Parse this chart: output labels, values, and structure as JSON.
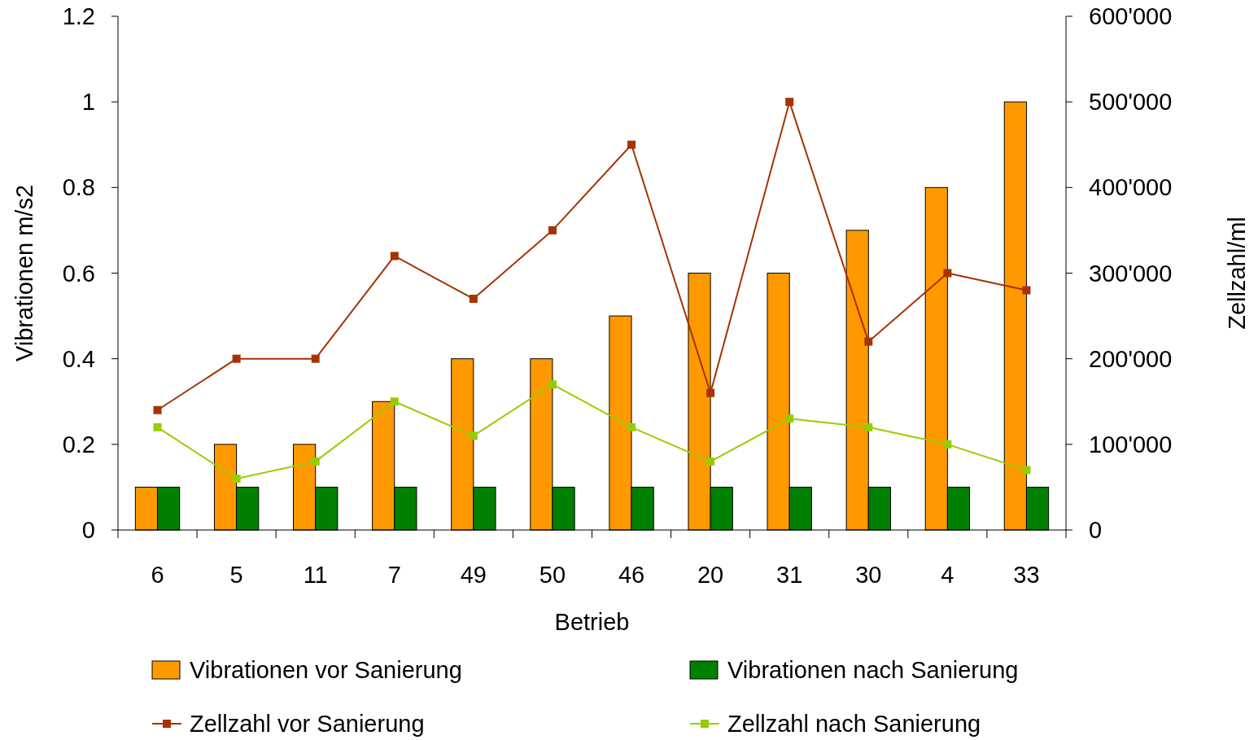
{
  "chart_data": {
    "type": "bar",
    "xlabel": "Betrieb",
    "ylabel": "Vibrationen m/s2",
    "y2label": "Zellzahl/ml",
    "categories": [
      "6",
      "5",
      "11",
      "7",
      "49",
      "50",
      "46",
      "20",
      "31",
      "30",
      "4",
      "33"
    ],
    "series": [
      {
        "name": "Vibrationen vor Sanierung",
        "color": "#ff9900",
        "values": [
          0.1,
          0.2,
          0.2,
          0.3,
          0.4,
          0.4,
          0.5,
          0.6,
          0.6,
          0.7,
          0.8,
          1.0
        ]
      },
      {
        "name": "Vibrationen nach Sanierung",
        "color": "#008000",
        "values": [
          0.1,
          0.1,
          0.1,
          0.1,
          0.1,
          0.1,
          0.1,
          0.1,
          0.1,
          0.1,
          0.1,
          0.1
        ]
      },
      {
        "name": "Zellzahl vor Sanierung",
        "type": "line",
        "axis": "y2",
        "color": "#a63300",
        "values": [
          140000,
          200000,
          200000,
          320000,
          270000,
          350000,
          450000,
          160000,
          500000,
          220000,
          300000,
          280000
        ]
      },
      {
        "name": "Zellzahl nach Sanierung",
        "type": "line",
        "axis": "y2",
        "color": "#99cc00",
        "values": [
          120000,
          60000,
          80000,
          150000,
          110000,
          170000,
          120000,
          80000,
          130000,
          120000,
          100000,
          70000
        ]
      }
    ],
    "ylim": [
      0,
      1.2
    ],
    "yticks": [
      0,
      0.2,
      0.4,
      0.6,
      0.8,
      1,
      1.2
    ],
    "y2lim": [
      0,
      600000
    ],
    "y2ticks": [
      0,
      {
        "value": 100000,
        "label": "100'000"
      },
      {
        "value": 200000,
        "label": "200'000"
      },
      {
        "value": 300000,
        "label": "300'000"
      },
      {
        "value": 400000,
        "label": "400'000"
      },
      {
        "value": 500000,
        "label": "500'000"
      },
      {
        "value": 600000,
        "label": "600'000"
      }
    ],
    "marker": "square",
    "line_style": "solid",
    "legend": "bottom",
    "grid": false
  }
}
